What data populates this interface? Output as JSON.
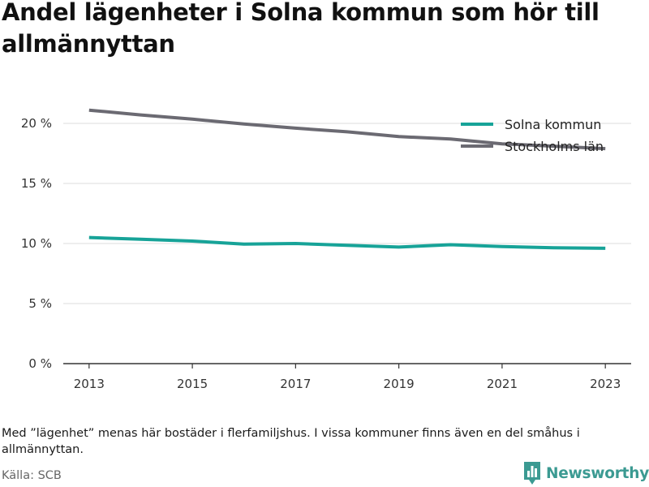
{
  "title": "Andel lägenheter i Solna kommun som hör till allmännyttan",
  "note": "Med ”lägenhet” menas här bostäder i flerfamiljshus. I vissa kommuner finns även en del småhus i allmännyttan.",
  "source": "Källa: SCB",
  "brand": {
    "name": "Newsworthy",
    "icon": "bar-chart-logo-icon",
    "color": "#3b9a92"
  },
  "chart_data": {
    "type": "line",
    "title": "Andel lägenheter i Solna kommun som hör till allmännyttan",
    "xlabel": "",
    "ylabel": "",
    "x": [
      2013,
      2014,
      2015,
      2016,
      2017,
      2018,
      2019,
      2020,
      2021,
      2022,
      2023
    ],
    "x_ticks": [
      "2013",
      "2015",
      "2017",
      "2019",
      "2021",
      "2023"
    ],
    "ylim": [
      0,
      22.5
    ],
    "y_ticks": [
      0,
      5,
      10,
      15,
      20
    ],
    "y_tick_labels": [
      "0 %",
      "5 %",
      "10 %",
      "15 %",
      "20 %"
    ],
    "grid": true,
    "legend_position": "top-right",
    "series": [
      {
        "name": "Solna kommun",
        "color": "#17a398",
        "values": [
          10.5,
          10.35,
          10.2,
          9.95,
          10.0,
          9.85,
          9.7,
          9.9,
          9.75,
          9.65,
          9.6
        ]
      },
      {
        "name": "Stockholms län",
        "color": "#6b6a72",
        "values": [
          21.1,
          20.7,
          20.35,
          19.95,
          19.6,
          19.3,
          18.9,
          18.7,
          18.3,
          18.1,
          17.9
        ]
      }
    ]
  }
}
